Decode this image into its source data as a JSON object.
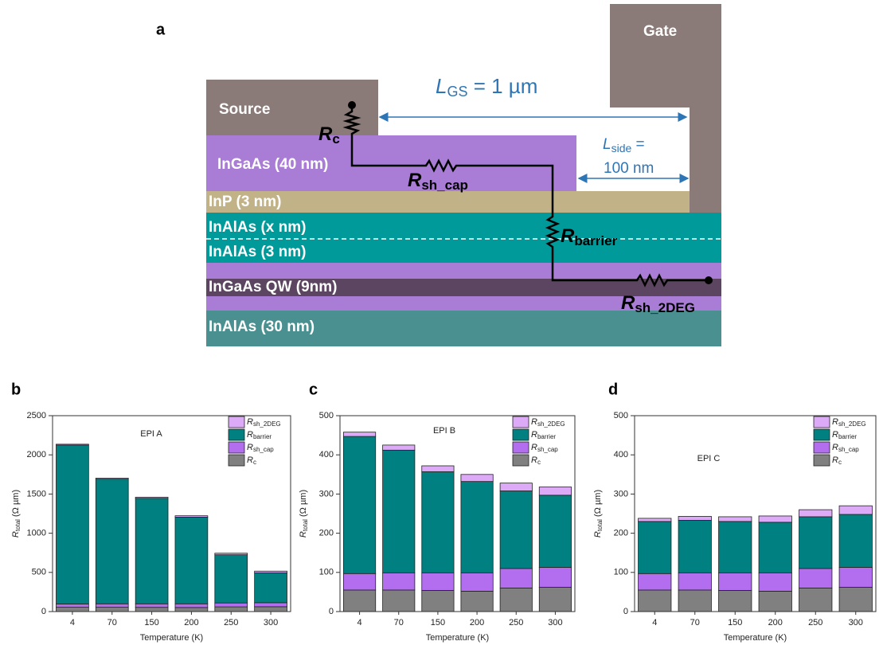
{
  "diagram": {
    "panel": "a",
    "layers": {
      "source": "Source",
      "gate": "Gate",
      "cap": "InGaAs (40 nm)",
      "inp": "InP (3 nm)",
      "barrier_x": "InAlAs (x nm)",
      "barrier_3": "InAlAs (3 nm)",
      "qw": "InGaAs QW (9nm)",
      "buffer": "InAlAs (30 nm)"
    },
    "resistors": [
      {
        "symbol": "R",
        "subscript": "c"
      },
      {
        "symbol": "R",
        "subscript": "sh_cap"
      },
      {
        "symbol": "R",
        "subscript": "barrier"
      },
      {
        "symbol": "R",
        "subscript": "sh_2DEG"
      }
    ],
    "lgs": {
      "symbol": "L",
      "subscript": "GS",
      "text": " = 1 µm"
    },
    "lside": {
      "symbol": "L",
      "subscript": "side",
      "text": " =",
      "line2": "100 nm"
    }
  },
  "chart_data": [
    {
      "type": "bar",
      "stacked": true,
      "panel": "b",
      "title": "EPI A",
      "xlabel": "Temperature (K)",
      "ylabel": {
        "symbol": "R",
        "subscript": "total",
        "text": " (Ω µm)"
      },
      "categories": [
        "4",
        "70",
        "150",
        "200",
        "250",
        "300"
      ],
      "ylim": [
        0,
        2500
      ],
      "yticks": [
        0,
        500,
        1000,
        1500,
        2000,
        2500
      ],
      "legend": "upper right",
      "series": [
        {
          "name": "Rc",
          "color": "#808080",
          "values": [
            55,
            55,
            54,
            52,
            60,
            62
          ]
        },
        {
          "name": "Rsh_cap",
          "color": "#b36ef0",
          "values": [
            42,
            44,
            45,
            47,
            50,
            51
          ]
        },
        {
          "name": "Rbarrier",
          "color": "#008080",
          "values": [
            2028,
            1591,
            1346,
            1106,
            615,
            382
          ]
        },
        {
          "name": "Rsh_2DEG",
          "color": "#dcaaf7",
          "values": [
            11,
            13,
            15,
            18,
            20,
            21
          ]
        }
      ]
    },
    {
      "type": "bar",
      "stacked": true,
      "panel": "c",
      "title": "EPI B",
      "xlabel": "Temperature (K)",
      "ylabel": {
        "symbol": "R",
        "subscript": "total",
        "text": " (Ω µm)"
      },
      "categories": [
        "4",
        "70",
        "150",
        "200",
        "250",
        "300"
      ],
      "ylim": [
        0,
        500
      ],
      "yticks": [
        0,
        100,
        200,
        300,
        400,
        500
      ],
      "legend": "upper right",
      "series": [
        {
          "name": "Rc",
          "color": "#808080",
          "values": [
            55,
            55,
            54,
            52,
            60,
            62
          ]
        },
        {
          "name": "Rsh_cap",
          "color": "#b36ef0",
          "values": [
            42,
            44,
            45,
            47,
            50,
            51
          ]
        },
        {
          "name": "Rbarrier",
          "color": "#008080",
          "values": [
            350,
            313,
            258,
            233,
            198,
            184
          ]
        },
        {
          "name": "Rsh_2DEG",
          "color": "#dcaaf7",
          "values": [
            11,
            13,
            15,
            18,
            20,
            21
          ]
        }
      ]
    },
    {
      "type": "bar",
      "stacked": true,
      "panel": "d",
      "title": "EPI C",
      "xlabel": "Temperature (K)",
      "ylabel": {
        "symbol": "R",
        "subscript": "total",
        "text": " (Ω µm)"
      },
      "categories": [
        "4",
        "70",
        "150",
        "200",
        "250",
        "300"
      ],
      "ylim": [
        0,
        500
      ],
      "yticks": [
        0,
        100,
        200,
        300,
        400,
        500
      ],
      "legend": "upper right",
      "series": [
        {
          "name": "Rc",
          "color": "#808080",
          "values": [
            55,
            55,
            54,
            52,
            60,
            62
          ]
        },
        {
          "name": "Rsh_cap",
          "color": "#b36ef0",
          "values": [
            42,
            44,
            45,
            47,
            50,
            51
          ]
        },
        {
          "name": "Rbarrier",
          "color": "#008080",
          "values": [
            133,
            134,
            131,
            129,
            132,
            135
          ]
        },
        {
          "name": "Rsh_2DEG",
          "color": "#dcaaf7",
          "values": [
            8,
            10,
            12,
            16,
            18,
            22
          ]
        }
      ]
    }
  ]
}
